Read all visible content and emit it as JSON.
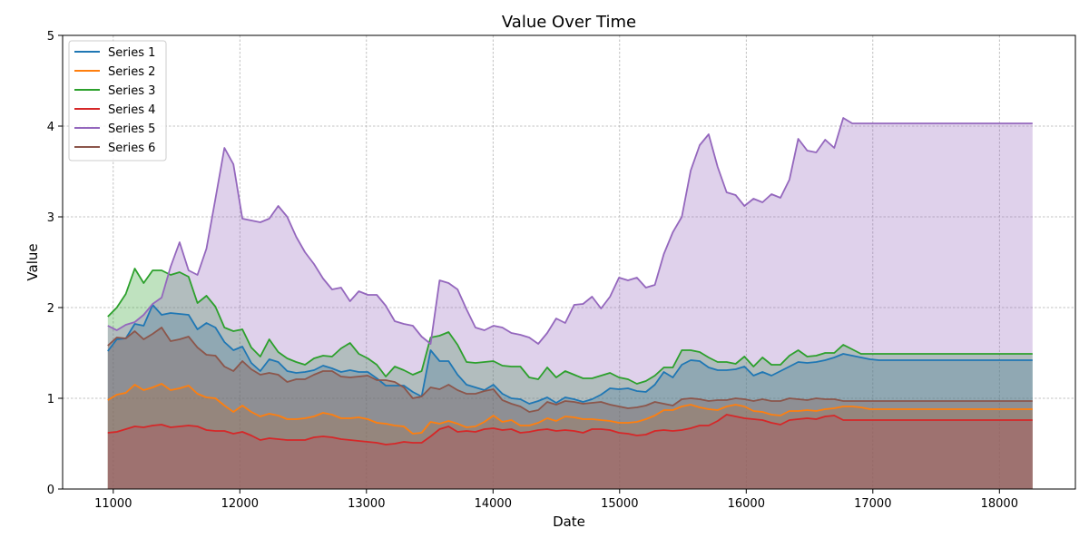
{
  "chart_data": {
    "type": "area",
    "title": "Value Over Time",
    "xlabel": "Date",
    "ylabel": "Value",
    "xlim": [
      10600,
      18600
    ],
    "ylim": [
      0,
      5
    ],
    "x_ticks": [
      11000,
      12000,
      13000,
      14000,
      15000,
      16000,
      17000,
      18000
    ],
    "y_ticks": [
      0,
      1,
      2,
      3,
      4,
      5
    ],
    "grid": true,
    "legend_position": "upper-left",
    "x": [
      10957,
      11028,
      11099,
      11170,
      11240,
      11311,
      11382,
      11453,
      11524,
      11595,
      11665,
      11736,
      11807,
      11878,
      11949,
      12020,
      12090,
      12161,
      12232,
      12303,
      12374,
      12445,
      12515,
      12586,
      12657,
      12728,
      12799,
      12870,
      12940,
      13011,
      13082,
      13153,
      13224,
      13295,
      13366,
      13436,
      13507,
      13578,
      13649,
      13720,
      13791,
      13861,
      13932,
      14003,
      14074,
      14145,
      14216,
      14286,
      14357,
      14428,
      14499,
      14570,
      14641,
      14711,
      14782,
      14853,
      14924,
      14995,
      15066,
      15136,
      15207,
      15278,
      15349,
      15420,
      15491,
      15561,
      15632,
      15703,
      15774,
      15845,
      15916,
      15986,
      16057,
      16128,
      16199,
      16270,
      16341,
      16411,
      16482,
      16553,
      16624,
      16695,
      16766,
      16837,
      16907,
      16978,
      17049,
      17120,
      17191,
      17262,
      17332,
      17403,
      17474,
      17545,
      17616,
      17687,
      17757,
      17828,
      17899,
      17970,
      18041,
      18112,
      18182,
      18262
    ],
    "series": [
      {
        "name": "Series 1",
        "color": "#1f77b4",
        "values": [
          1.52,
          1.65,
          1.66,
          1.82,
          1.8,
          2.03,
          1.92,
          1.94,
          1.93,
          1.92,
          1.76,
          1.83,
          1.78,
          1.62,
          1.53,
          1.57,
          1.39,
          1.3,
          1.43,
          1.4,
          1.3,
          1.28,
          1.29,
          1.31,
          1.36,
          1.33,
          1.29,
          1.31,
          1.29,
          1.29,
          1.22,
          1.14,
          1.14,
          1.14,
          1.07,
          1.02,
          1.53,
          1.41,
          1.41,
          1.26,
          1.15,
          1.12,
          1.09,
          1.15,
          1.05,
          1.0,
          0.99,
          0.94,
          0.97,
          1.01,
          0.95,
          1.01,
          0.99,
          0.96,
          0.99,
          1.04,
          1.11,
          1.1,
          1.11,
          1.08,
          1.07,
          1.15,
          1.29,
          1.23,
          1.37,
          1.42,
          1.41,
          1.34,
          1.31,
          1.31,
          1.32,
          1.35,
          1.25,
          1.29,
          1.25,
          1.3,
          1.35,
          1.4,
          1.39,
          1.4,
          1.42,
          1.45,
          1.49,
          1.47,
          1.45,
          1.43,
          1.42,
          1.42,
          1.42,
          1.42,
          1.42,
          1.42,
          1.42,
          1.42,
          1.42,
          1.42,
          1.42,
          1.42,
          1.42,
          1.42,
          1.42,
          1.42,
          1.42,
          1.42
        ]
      },
      {
        "name": "Series 2",
        "color": "#ff7f0e",
        "values": [
          0.98,
          1.04,
          1.06,
          1.15,
          1.09,
          1.12,
          1.16,
          1.09,
          1.11,
          1.14,
          1.05,
          1.01,
          1.0,
          0.92,
          0.85,
          0.92,
          0.85,
          0.8,
          0.83,
          0.81,
          0.77,
          0.77,
          0.78,
          0.8,
          0.84,
          0.82,
          0.78,
          0.78,
          0.79,
          0.77,
          0.73,
          0.72,
          0.7,
          0.69,
          0.61,
          0.62,
          0.74,
          0.72,
          0.75,
          0.72,
          0.68,
          0.69,
          0.74,
          0.81,
          0.74,
          0.76,
          0.7,
          0.7,
          0.73,
          0.78,
          0.75,
          0.8,
          0.79,
          0.77,
          0.77,
          0.76,
          0.75,
          0.73,
          0.73,
          0.74,
          0.77,
          0.81,
          0.87,
          0.87,
          0.91,
          0.93,
          0.9,
          0.88,
          0.87,
          0.91,
          0.93,
          0.91,
          0.86,
          0.85,
          0.82,
          0.81,
          0.86,
          0.86,
          0.87,
          0.86,
          0.88,
          0.89,
          0.91,
          0.91,
          0.9,
          0.88,
          0.88,
          0.88,
          0.88,
          0.88,
          0.88,
          0.88,
          0.88,
          0.88,
          0.88,
          0.88,
          0.88,
          0.88,
          0.88,
          0.88,
          0.88,
          0.88,
          0.88,
          0.88
        ]
      },
      {
        "name": "Series 3",
        "color": "#2ca02c",
        "values": [
          1.9,
          2.0,
          2.15,
          2.43,
          2.27,
          2.41,
          2.41,
          2.36,
          2.39,
          2.34,
          2.05,
          2.13,
          2.01,
          1.78,
          1.74,
          1.76,
          1.56,
          1.46,
          1.65,
          1.51,
          1.44,
          1.4,
          1.37,
          1.44,
          1.47,
          1.46,
          1.55,
          1.61,
          1.49,
          1.44,
          1.37,
          1.24,
          1.35,
          1.31,
          1.26,
          1.3,
          1.67,
          1.69,
          1.73,
          1.59,
          1.4,
          1.39,
          1.4,
          1.41,
          1.36,
          1.35,
          1.35,
          1.23,
          1.21,
          1.34,
          1.23,
          1.3,
          1.26,
          1.22,
          1.22,
          1.25,
          1.28,
          1.23,
          1.21,
          1.16,
          1.19,
          1.25,
          1.34,
          1.34,
          1.53,
          1.53,
          1.51,
          1.45,
          1.4,
          1.4,
          1.38,
          1.46,
          1.35,
          1.45,
          1.37,
          1.37,
          1.47,
          1.53,
          1.46,
          1.47,
          1.5,
          1.5,
          1.59,
          1.54,
          1.49,
          1.49,
          1.49,
          1.49,
          1.49,
          1.49,
          1.49,
          1.49,
          1.49,
          1.49,
          1.49,
          1.49,
          1.49,
          1.49,
          1.49,
          1.49,
          1.49,
          1.49,
          1.49,
          1.49
        ]
      },
      {
        "name": "Series 4",
        "color": "#d62728",
        "values": [
          0.62,
          0.63,
          0.66,
          0.69,
          0.68,
          0.7,
          0.71,
          0.68,
          0.69,
          0.7,
          0.69,
          0.65,
          0.64,
          0.64,
          0.61,
          0.63,
          0.59,
          0.54,
          0.56,
          0.55,
          0.54,
          0.54,
          0.54,
          0.57,
          0.58,
          0.57,
          0.55,
          0.54,
          0.53,
          0.52,
          0.51,
          0.49,
          0.5,
          0.52,
          0.51,
          0.51,
          0.58,
          0.66,
          0.69,
          0.63,
          0.64,
          0.63,
          0.66,
          0.67,
          0.65,
          0.66,
          0.62,
          0.63,
          0.65,
          0.66,
          0.64,
          0.65,
          0.64,
          0.62,
          0.66,
          0.66,
          0.65,
          0.62,
          0.61,
          0.59,
          0.6,
          0.64,
          0.65,
          0.64,
          0.65,
          0.67,
          0.7,
          0.7,
          0.75,
          0.82,
          0.8,
          0.78,
          0.77,
          0.76,
          0.73,
          0.71,
          0.76,
          0.77,
          0.78,
          0.77,
          0.8,
          0.81,
          0.76,
          0.76,
          0.76,
          0.76,
          0.76,
          0.76,
          0.76,
          0.76,
          0.76,
          0.76,
          0.76,
          0.76,
          0.76,
          0.76,
          0.76,
          0.76,
          0.76,
          0.76,
          0.76,
          0.76,
          0.76,
          0.76
        ]
      },
      {
        "name": "Series 5",
        "color": "#9467bd",
        "values": [
          1.8,
          1.75,
          1.81,
          1.84,
          1.92,
          2.04,
          2.11,
          2.45,
          2.72,
          2.41,
          2.36,
          2.65,
          3.2,
          3.76,
          3.58,
          2.98,
          2.96,
          2.94,
          2.98,
          3.12,
          3.0,
          2.78,
          2.61,
          2.48,
          2.32,
          2.2,
          2.22,
          2.07,
          2.18,
          2.14,
          2.14,
          2.02,
          1.85,
          1.82,
          1.8,
          1.68,
          1.6,
          2.3,
          2.27,
          2.2,
          1.98,
          1.78,
          1.75,
          1.8,
          1.78,
          1.72,
          1.7,
          1.67,
          1.6,
          1.72,
          1.88,
          1.83,
          2.03,
          2.04,
          2.12,
          1.99,
          2.12,
          2.33,
          2.3,
          2.33,
          2.22,
          2.25,
          2.59,
          2.83,
          3.0,
          3.51,
          3.79,
          3.91,
          3.55,
          3.27,
          3.24,
          3.12,
          3.2,
          3.16,
          3.25,
          3.21,
          3.41,
          3.86,
          3.73,
          3.71,
          3.85,
          3.76,
          4.09,
          4.03,
          4.03,
          4.03,
          4.03,
          4.03,
          4.03,
          4.03,
          4.03,
          4.03,
          4.03,
          4.03,
          4.03,
          4.03,
          4.03,
          4.03,
          4.03,
          4.03,
          4.03,
          4.03,
          4.03,
          4.03
        ]
      },
      {
        "name": "Series 6",
        "color": "#8c564b",
        "values": [
          1.58,
          1.67,
          1.66,
          1.74,
          1.65,
          1.71,
          1.78,
          1.63,
          1.65,
          1.68,
          1.56,
          1.48,
          1.47,
          1.35,
          1.3,
          1.41,
          1.32,
          1.26,
          1.28,
          1.26,
          1.18,
          1.21,
          1.21,
          1.26,
          1.3,
          1.3,
          1.24,
          1.23,
          1.24,
          1.25,
          1.2,
          1.2,
          1.18,
          1.12,
          1.0,
          1.02,
          1.12,
          1.1,
          1.15,
          1.09,
          1.05,
          1.05,
          1.08,
          1.1,
          0.98,
          0.94,
          0.91,
          0.85,
          0.87,
          0.96,
          0.93,
          0.97,
          0.96,
          0.94,
          0.95,
          0.96,
          0.93,
          0.91,
          0.89,
          0.9,
          0.92,
          0.96,
          0.94,
          0.92,
          0.99,
          1.0,
          0.99,
          0.97,
          0.98,
          0.98,
          1.0,
          0.99,
          0.97,
          0.99,
          0.97,
          0.97,
          1.0,
          0.99,
          0.98,
          1.0,
          0.99,
          0.99,
          0.97,
          0.97,
          0.97,
          0.97,
          0.97,
          0.97,
          0.97,
          0.97,
          0.97,
          0.97,
          0.97,
          0.97,
          0.97,
          0.97,
          0.97,
          0.97,
          0.97,
          0.97,
          0.97,
          0.97,
          0.97,
          0.97
        ]
      }
    ]
  }
}
